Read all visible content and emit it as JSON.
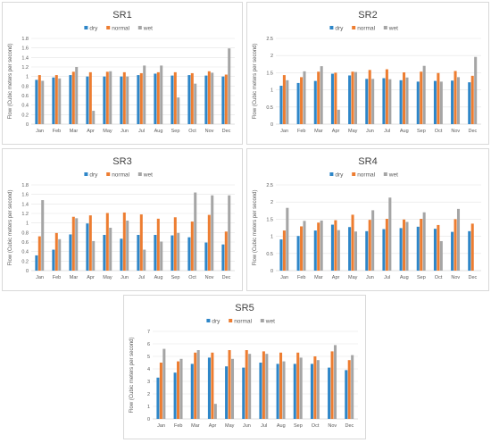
{
  "colors": {
    "dry": "#2e86c8",
    "normal": "#ed7d31",
    "wet": "#a5a5a5"
  },
  "chart_data": [
    {
      "type": "bar",
      "title": "SR1",
      "ylabel": "Flow (Cubic meters per second)",
      "categories": [
        "Jan",
        "Feb",
        "Mar",
        "Apr",
        "May",
        "Jun",
        "Jul",
        "Aug",
        "Sep",
        "Oct",
        "Nov",
        "Dec"
      ],
      "ylim": [
        0,
        1.8
      ],
      "yticks": [
        "0",
        "0.2",
        "0.4",
        "0.6",
        "0.8",
        "1",
        "1.2",
        "1.4",
        "1.6",
        "1.8"
      ],
      "legend_position": "top-center",
      "series": [
        {
          "name": "dry",
          "values": [
            0.93,
            0.98,
            1.03,
            1.0,
            1.0,
            1.0,
            1.03,
            1.06,
            1.02,
            1.03,
            1.02,
            1.0
          ]
        },
        {
          "name": "normal",
          "values": [
            1.03,
            1.03,
            1.1,
            1.09,
            1.1,
            1.09,
            1.07,
            1.09,
            1.09,
            1.07,
            1.11,
            1.04
          ]
        },
        {
          "name": "wet",
          "values": [
            0.91,
            0.96,
            1.2,
            0.28,
            1.11,
            1.0,
            1.23,
            1.23,
            0.56,
            0.85,
            1.08,
            1.59
          ]
        }
      ]
    },
    {
      "type": "bar",
      "title": "SR2",
      "ylabel": "Flow (Cubic meters per second)",
      "categories": [
        "Jan",
        "Feb",
        "Mar",
        "Apr",
        "May",
        "Jun",
        "Jul",
        "Aug",
        "Sep",
        "Oct",
        "Nov",
        "Dec"
      ],
      "ylim": [
        0,
        2.5
      ],
      "yticks": [
        "0",
        "0.5",
        "1",
        "1.5",
        "2",
        "2.5"
      ],
      "legend_position": "top-center",
      "series": [
        {
          "name": "dry",
          "values": [
            1.12,
            1.2,
            1.26,
            1.47,
            1.42,
            1.32,
            1.34,
            1.28,
            1.24,
            1.26,
            1.27,
            1.22
          ]
        },
        {
          "name": "normal",
          "values": [
            1.43,
            1.37,
            1.53,
            1.5,
            1.53,
            1.58,
            1.6,
            1.51,
            1.53,
            1.49,
            1.55,
            1.41
          ]
        },
        {
          "name": "wet",
          "values": [
            1.28,
            1.54,
            1.69,
            0.42,
            1.52,
            1.32,
            1.31,
            1.36,
            1.7,
            1.24,
            1.37,
            1.96
          ]
        }
      ]
    },
    {
      "type": "bar",
      "title": "SR3",
      "ylabel": "Flow (Cubic meters per second)",
      "categories": [
        "Jan",
        "Feb",
        "Mar",
        "Apr",
        "May",
        "Jun",
        "Jul",
        "Aug",
        "Sep",
        "Oct",
        "Nov",
        "Dec"
      ],
      "ylim": [
        0,
        1.8
      ],
      "yticks": [
        "0",
        "0.2",
        "0.4",
        "0.6",
        "0.8",
        "1",
        "1.2",
        "1.4",
        "1.6",
        "1.8"
      ],
      "legend_position": "top-center",
      "series": [
        {
          "name": "dry",
          "values": [
            0.32,
            0.44,
            0.76,
            0.99,
            0.75,
            0.67,
            0.75,
            0.75,
            0.74,
            0.7,
            0.59,
            0.55
          ]
        },
        {
          "name": "normal",
          "values": [
            0.72,
            0.79,
            1.13,
            1.16,
            1.21,
            1.22,
            1.18,
            1.09,
            1.12,
            1.03,
            1.17,
            0.82
          ]
        },
        {
          "name": "wet",
          "values": [
            1.48,
            0.66,
            1.1,
            0.62,
            0.9,
            1.05,
            0.44,
            0.61,
            0.79,
            1.64,
            1.58,
            1.58
          ]
        }
      ]
    },
    {
      "type": "bar",
      "title": "SR4",
      "ylabel": "Flow (Cubic meters per second)",
      "categories": [
        "Jan",
        "Feb",
        "Mar",
        "Apr",
        "May",
        "Jun",
        "Jul",
        "Aug",
        "Sep",
        "Oct",
        "Nov",
        "Dec"
      ],
      "ylim": [
        0,
        2.5
      ],
      "yticks": [
        "0",
        "0.5",
        "1",
        "1.5",
        "2",
        "2.5"
      ],
      "legend_position": "top-center",
      "series": [
        {
          "name": "dry",
          "values": [
            0.91,
            1.01,
            1.17,
            1.34,
            1.27,
            1.15,
            1.21,
            1.24,
            1.28,
            1.22,
            1.13,
            1.15
          ]
        },
        {
          "name": "normal",
          "values": [
            1.17,
            1.29,
            1.4,
            1.47,
            1.63,
            1.48,
            1.51,
            1.49,
            1.51,
            1.33,
            1.5,
            1.37
          ]
        },
        {
          "name": "wet",
          "values": [
            1.83,
            1.45,
            1.46,
            1.18,
            1.14,
            1.76,
            2.13,
            1.42,
            1.7,
            0.86,
            1.8,
            0.0
          ]
        }
      ]
    },
    {
      "type": "bar",
      "title": "SR5",
      "ylabel": "Flow (Cubic meters per second)",
      "categories": [
        "Jan",
        "Feb",
        "Mar",
        "Apr",
        "May",
        "Jun",
        "Jul",
        "Aug",
        "Sep",
        "Oct",
        "Nov",
        "Dec"
      ],
      "ylim": [
        0,
        7
      ],
      "yticks": [
        "0",
        "1",
        "2",
        "3",
        "4",
        "5",
        "6",
        "7"
      ],
      "legend_position": "top-center",
      "series": [
        {
          "name": "dry",
          "values": [
            3.3,
            3.7,
            4.4,
            4.9,
            4.2,
            4.1,
            4.5,
            4.4,
            4.4,
            4.4,
            4.1,
            3.9
          ]
        },
        {
          "name": "normal",
          "values": [
            4.5,
            4.6,
            5.3,
            5.3,
            5.5,
            5.5,
            5.4,
            5.3,
            5.3,
            5.0,
            5.4,
            4.7
          ]
        },
        {
          "name": "wet",
          "values": [
            5.6,
            4.8,
            5.5,
            1.2,
            4.8,
            5.2,
            5.2,
            4.6,
            4.9,
            4.7,
            5.9,
            5.1
          ]
        }
      ]
    }
  ]
}
